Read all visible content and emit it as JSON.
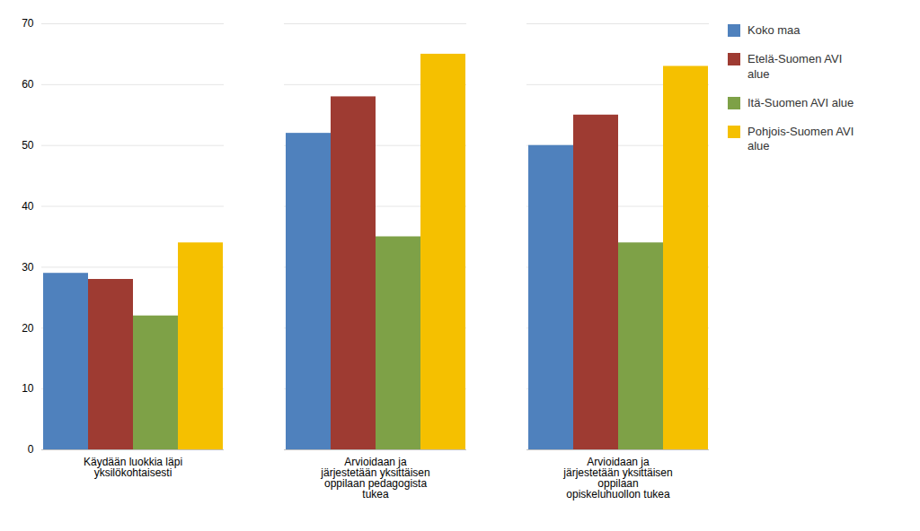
{
  "chart_data": {
    "type": "bar",
    "categories": [
      "Käydään luokkia läpi\nyksilökohtaisesti",
      "Arvioidaan ja\njärjestetään yksittäisen\noppilaan pedagogista\ntukea",
      "Arvioidaan ja\njärjestetään yksittäisen\noppilaan\nopiskeluhuollon tukea"
    ],
    "series": [
      {
        "name": "Koko maa",
        "color": "#4F81BD",
        "values": [
          29,
          52,
          50
        ]
      },
      {
        "name": "Etelä-Suomen AVI\nalue",
        "color": "#9E3B32",
        "values": [
          28,
          58,
          55
        ]
      },
      {
        "name": "Itä-Suomen AVI alue",
        "color": "#7EA147",
        "values": [
          22,
          35,
          34
        ]
      },
      {
        "name": "Pohjois-Suomen AVI\nalue",
        "color": "#F5C000",
        "values": [
          34,
          65,
          63
        ]
      }
    ],
    "ylim": [
      0,
      70
    ],
    "yticks": [
      0,
      10,
      20,
      30,
      40,
      50,
      60,
      70
    ],
    "grid": true,
    "legend": "right"
  }
}
